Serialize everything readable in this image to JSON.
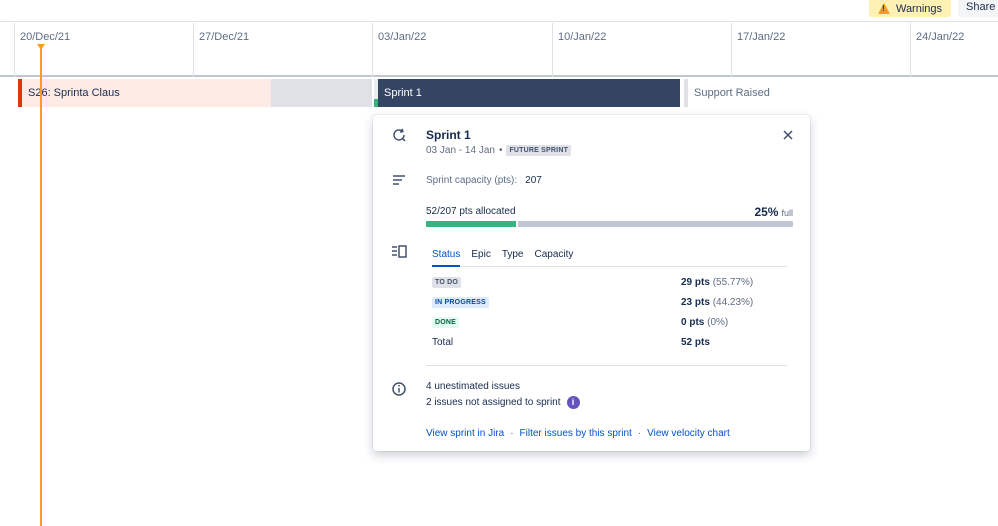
{
  "toolbar": {
    "warnings_label": "Warnings",
    "share_label": "Share a"
  },
  "timeline": {
    "dates": [
      "20/Dec/21",
      "27/Dec/21",
      "03/Jan/22",
      "10/Jan/22",
      "17/Jan/22",
      "24/Jan/22"
    ]
  },
  "bars": {
    "prev_sprint": "S26: Sprinta Claus",
    "current_sprint": "Sprint 1",
    "next_item": "Support Raised"
  },
  "popup": {
    "title": "Sprint 1",
    "dates": "03 Jan - 14 Jan",
    "separator": "•",
    "state_badge": "FUTURE SPRINT",
    "capacity_label": "Sprint capacity (pts):",
    "capacity_value": "207",
    "allocated_text": "52/207 pts allocated",
    "allocated_pct": "25%",
    "allocated_pct_suffix": "full",
    "allocated_fraction": 0.25,
    "tabs": [
      "Status",
      "Epic",
      "Type",
      "Capacity"
    ],
    "active_tab": "Status",
    "status_rows": [
      {
        "label": "TO DO",
        "pts": "29 pts",
        "pct": "(55.77%)",
        "style": "grey"
      },
      {
        "label": "IN PROGRESS",
        "pts": "23 pts",
        "pct": "(44.23%)",
        "style": "blue"
      },
      {
        "label": "DONE",
        "pts": "0 pts",
        "pct": "(0%)",
        "style": "green"
      }
    ],
    "total_label": "Total",
    "total_value": "52 pts",
    "unestimated": "4 unestimated issues",
    "unassigned": "2 issues not assigned to sprint",
    "links": {
      "view_sprint": "View sprint in Jira",
      "filter_issues": "Filter issues by this sprint",
      "velocity": "View velocity chart",
      "separator": "·"
    }
  },
  "colors": {
    "sprint_bar": "#344563",
    "prev_sprint_bar": "#ffebe6",
    "today_line": "#ff991f",
    "progress_fill": "#36b37e",
    "link": "#0052cc"
  }
}
